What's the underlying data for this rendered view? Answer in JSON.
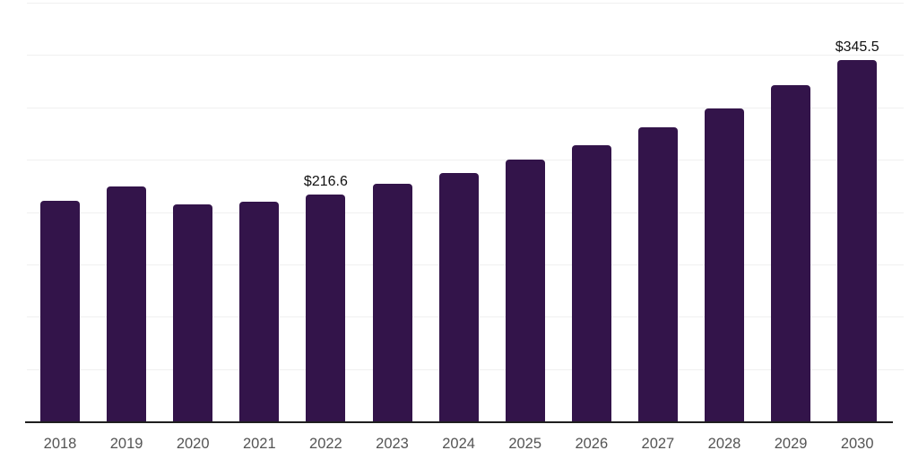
{
  "chart_data": {
    "type": "bar",
    "title": "",
    "categories": [
      "2018",
      "2019",
      "2020",
      "2021",
      "2022",
      "2023",
      "2024",
      "2025",
      "2026",
      "2027",
      "2028",
      "2029",
      "2030"
    ],
    "values": [
      211.0,
      224.5,
      207.5,
      210.0,
      216.6,
      227.0,
      237.0,
      250.0,
      264.0,
      281.0,
      299.0,
      321.0,
      345.5
    ],
    "data_labels": [
      "",
      "",
      "",
      "",
      "$216.6",
      "",
      "",
      "",
      "",
      "",
      "",
      "",
      "$345.5"
    ],
    "xlabel": "",
    "ylabel": "",
    "ylim": [
      0,
      400
    ],
    "grid_step": 50,
    "grid": "horizontal gridlines only, no y-axis tick labels, top gridline visible",
    "legend": "none",
    "colors": {
      "bar": "#33144a",
      "gridline": "#f0f0f0",
      "axis_line": "#1f1f1f",
      "tick_label": "#545454",
      "data_label": "#111111",
      "background": "#ffffff"
    }
  }
}
